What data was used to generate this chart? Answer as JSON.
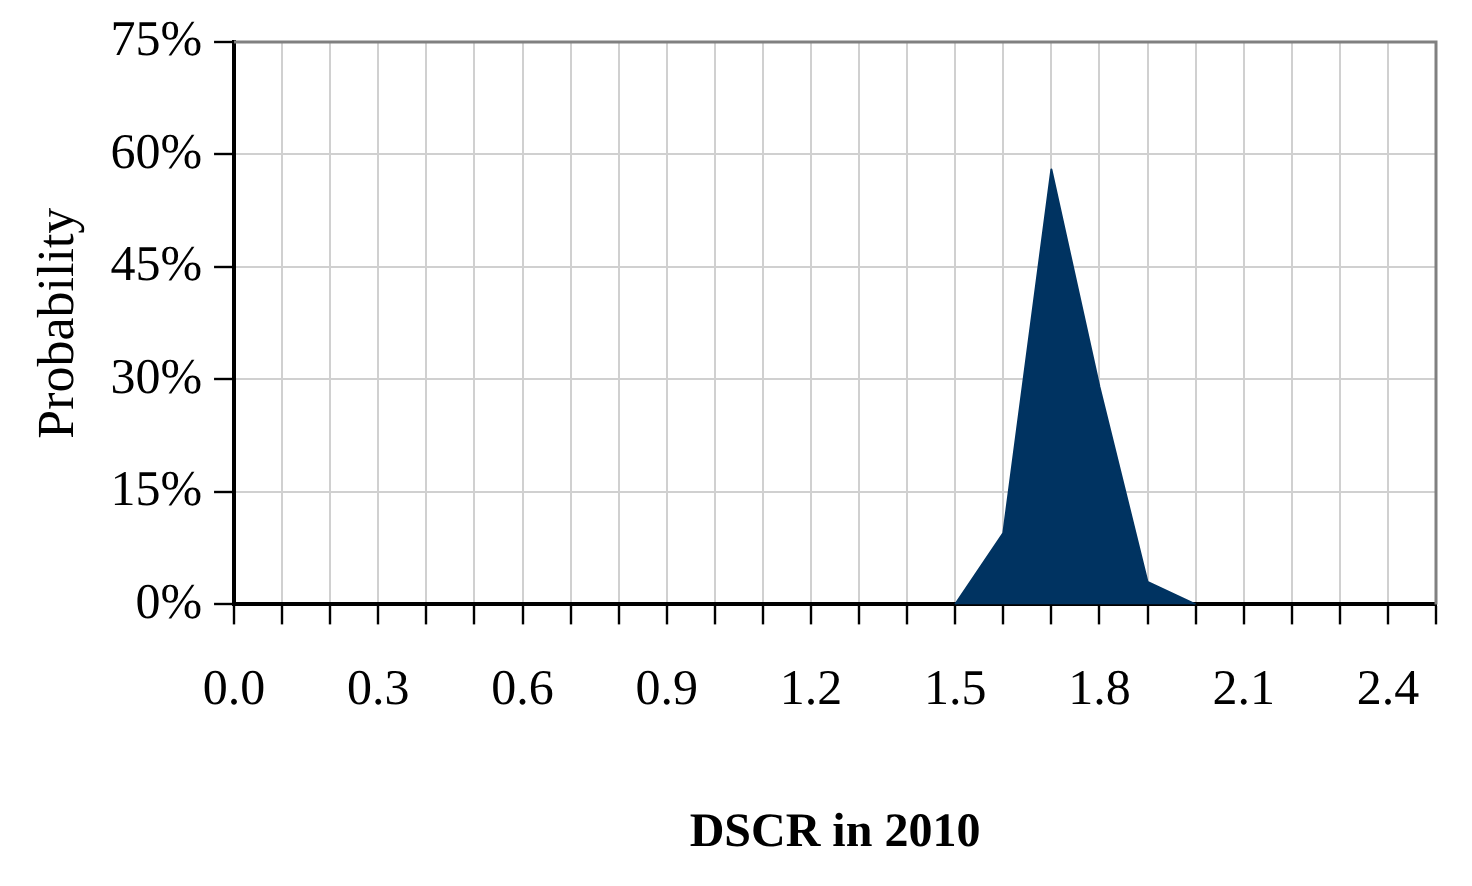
{
  "chart_data": {
    "type": "area",
    "xlabel": "DSCR in 2010",
    "ylabel": "Probability",
    "x": [
      1.5,
      1.6,
      1.7,
      1.8,
      1.9,
      2.0
    ],
    "series": [
      {
        "color": "#003361",
        "values": [
          0,
          9.5,
          58,
          29,
          3,
          0
        ]
      }
    ],
    "xlim": [
      0,
      2.5
    ],
    "xticks": [
      {
        "value": 0,
        "label": "0.0"
      },
      {
        "value": 0.1,
        "label": null
      },
      {
        "value": 0.2,
        "label": null
      },
      0.3,
      {
        "value": 0.4,
        "label": null
      },
      {
        "value": 0.5,
        "label": null
      },
      0.6,
      {
        "value": 0.7,
        "label": null
      },
      {
        "value": 0.8,
        "label": null
      },
      0.9,
      {
        "value": 1.0,
        "label": null
      },
      {
        "value": 1.1,
        "label": null
      },
      1.2,
      {
        "value": 1.3,
        "label": null
      },
      {
        "value": 1.4,
        "label": null
      },
      1.5,
      {
        "value": 1.6,
        "label": null
      },
      {
        "value": 1.7,
        "label": null
      },
      1.8,
      {
        "value": 1.9,
        "label": null
      },
      {
        "value": 2.0,
        "label": null
      },
      2.1,
      {
        "value": 2.2,
        "label": null
      },
      {
        "value": 2.3,
        "label": null
      },
      2.4,
      {
        "value": 2.5,
        "label": null
      }
    ],
    "ylim": [
      0,
      75
    ],
    "yticks": [
      {
        "value": 0,
        "label": "0%"
      },
      {
        "value": 15,
        "label": "15%"
      },
      {
        "value": 30,
        "label": "30%"
      },
      {
        "value": 45,
        "label": "45%"
      },
      {
        "value": 60,
        "label": "60%"
      },
      {
        "value": 75,
        "label": "75%"
      }
    ],
    "grid": true,
    "legend": false
  }
}
